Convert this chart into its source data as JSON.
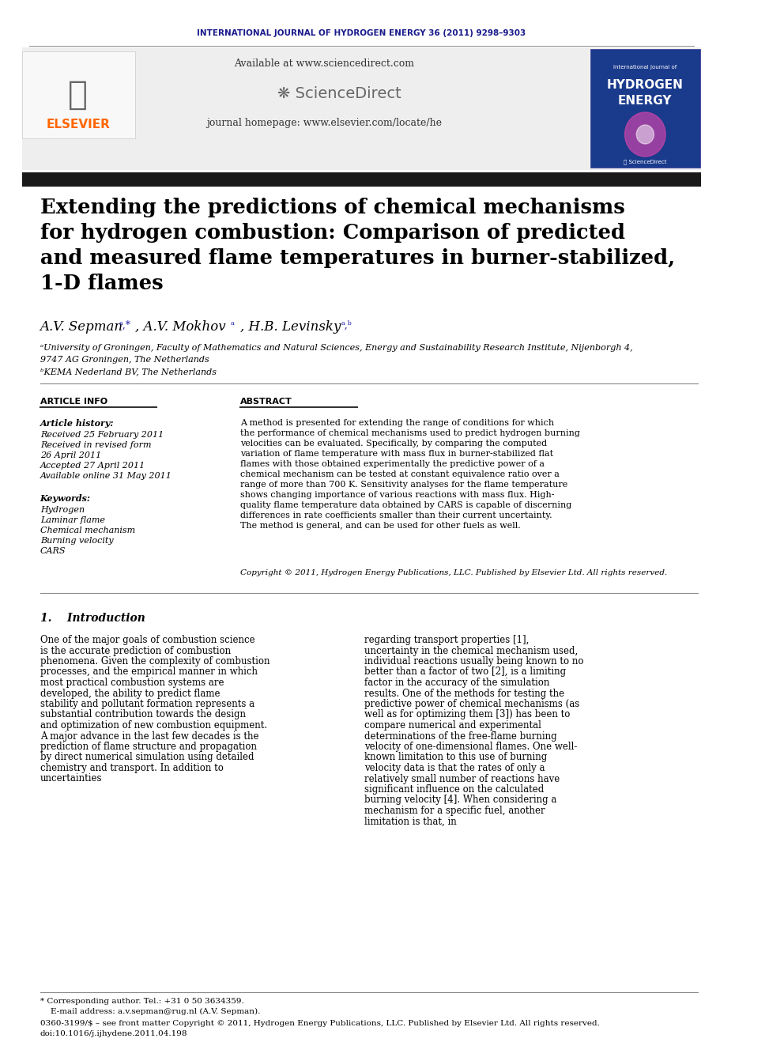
{
  "journal_header": "INTERNATIONAL JOURNAL OF HYDROGEN ENERGY 36 (2011) 9298–9303",
  "journal_header_color": "#1a1a8c",
  "available_text": "Available at www.sciencedirect.com",
  "journal_homepage": "journal homepage: www.elsevier.com/locate/he",
  "elsevier_color": "#ff6600",
  "title": "Extending the predictions of chemical mechanisms\nfor hydrogen combustion: Comparison of predicted\nand measured flame temperatures in burner-stabilized,\n1-D flames",
  "authors": "A.V. Sepman",
  "authors2": ", A.V. Mokhov",
  "authors3": ", H.B. Levinsky",
  "affil_a": "ªUniversity of Groningen, Faculty of Mathematics and Natural Sciences, Energy and Sustainability Research Institute, Nijenborgh 4,\n9747 AG Groningen, The Netherlands",
  "affil_b": "ᵇKEMA Nederland BV, The Netherlands",
  "article_info_header": "ARTICLE INFO",
  "abstract_header": "ABSTRACT",
  "article_history_title": "Article history:",
  "article_history": "Received 25 February 2011\nReceived in revised form\n26 April 2011\nAccepted 27 April 2011\nAvailable online 31 May 2011",
  "keywords_title": "Keywords:",
  "keywords": "Hydrogen\nLaminar flame\nChemical mechanism\nBurning velocity\nCARS",
  "abstract_text": "A method is presented for extending the range of conditions for which the performance of chemical mechanisms used to predict hydrogen burning velocities can be evaluated. Specifically, by comparing the computed variation of flame temperature with mass flux in burner-stabilized flat flames with those obtained experimentally the predictive power of a chemical mechanism can be tested at constant equivalence ratio over a range of more than 700 K. Sensitivity analyses for the flame temperature shows changing importance of various reactions with mass flux. High-quality flame temperature data obtained by CARS is capable of discerning differences in rate coefficients smaller than their current uncertainty. The method is general, and can be used for other fuels as well.",
  "copyright_text": "Copyright © 2011, Hydrogen Energy Publications, LLC. Published by Elsevier Ltd. All rights reserved.",
  "intro_title": "1.    Introduction",
  "intro_col1": "One of the major goals of combustion science is the accurate prediction of combustion phenomena. Given the complexity of combustion processes, and the empirical manner in which most practical combustion systems are developed, the ability to predict flame stability and pollutant formation represents a substantial contribution towards the design and optimization of new combustion equipment. A major advance in the last few decades is the prediction of flame structure and propagation by direct numerical simulation using detailed chemistry and transport. In addition to uncertainties",
  "intro_col2": "regarding transport properties [1], uncertainty in the chemical mechanism used, individual reactions usually being known to no better than a factor of two [2], is a limiting factor in the accuracy of the simulation results. One of the methods for testing the predictive power of chemical mechanisms (as well as for optimizing them [3]) has been to compare numerical and experimental determinations of the free-flame burning velocity of one-dimensional flames. One well-known limitation to this use of burning velocity data is that the rates of only a relatively small number of reactions have significant influence on the calculated burning velocity [4]. When considering a mechanism for a specific fuel, another limitation is that, in",
  "footnote_star": "* Corresponding author. Tel.: +31 0 50 3634359.",
  "footnote_email": "    E-mail address: a.v.sepman@rug.nl (A.V. Sepman).",
  "footnote_issn": "0360-3199/$ – see front matter Copyright © 2011, Hydrogen Energy Publications, LLC. Published by Elsevier Ltd. All rights reserved.",
  "footnote_doi": "doi:10.1016/j.ijhydene.2011.04.198",
  "bg_color": "#ffffff",
  "header_bg": "#f0f0f0",
  "text_color": "#000000",
  "dark_bar_color": "#1a1a1a"
}
